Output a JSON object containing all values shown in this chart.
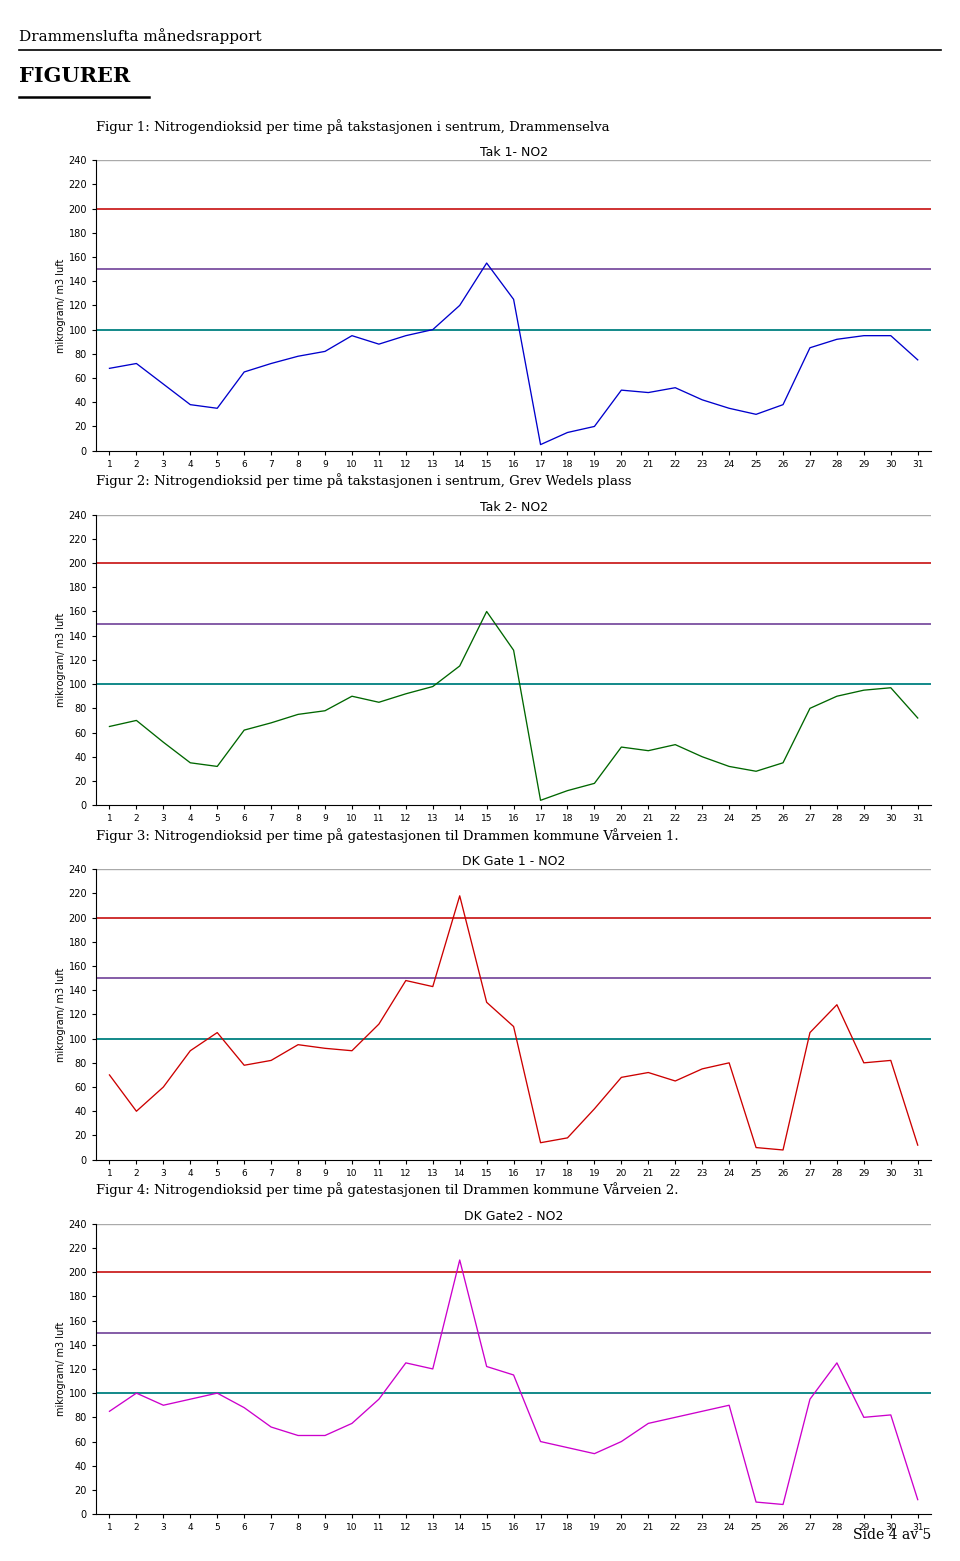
{
  "page_title": "Drammenslufta månedsrapport",
  "section_title": "FIGURER",
  "fig1_caption": "Figur 1: Nitrogendioksid per time på takstasjonen i sentrum, Drammenselva",
  "fig2_caption": "Figur 2: Nitrogendioksid per time på takstasjonen i sentrum, Grev Wedels plass",
  "fig3_caption": "Figur 3: Nitrogendioksid per time på gatestasjonen til Drammen kommune Vårveien 1.",
  "fig4_caption": "Figur 4: Nitrogendioksid per time på gatestasjonen til Drammen kommune Vårveien 2.",
  "fig1_title": "Tak 1- NO2",
  "fig2_title": "Tak 2- NO2",
  "fig3_title": "DK Gate 1 - NO2",
  "fig4_title": "DK Gate2 - NO2",
  "ylabel": "mikrogram/ m3 luft",
  "ylim": [
    0,
    240
  ],
  "yticks": [
    0,
    20,
    40,
    60,
    80,
    100,
    120,
    140,
    160,
    180,
    200,
    220,
    240
  ],
  "xticks": [
    1,
    2,
    3,
    4,
    5,
    6,
    7,
    8,
    9,
    10,
    11,
    12,
    13,
    14,
    15,
    16,
    17,
    18,
    19,
    20,
    21,
    22,
    23,
    24,
    25,
    26,
    27,
    28,
    29,
    30,
    31
  ],
  "hline1": 100,
  "hline2": 150,
  "hline3": 200,
  "hline1_color": "#008080",
  "hline2_color": "#7b4fa0",
  "hline3_color": "#cc2222",
  "hline_gray_color": "#aaaaaa",
  "line1_color": "#0000cc",
  "line2_color": "#006600",
  "line3_color": "#cc0000",
  "line4_color": "#cc00cc",
  "page_footer": "Side 4 av 5",
  "tak1": [
    68,
    72,
    55,
    38,
    35,
    65,
    72,
    78,
    82,
    95,
    88,
    95,
    100,
    120,
    155,
    125,
    5,
    15,
    20,
    50,
    48,
    52,
    42,
    35,
    30,
    38,
    85,
    92,
    95,
    95,
    75
  ],
  "tak2": [
    65,
    70,
    52,
    35,
    32,
    62,
    68,
    75,
    78,
    90,
    85,
    92,
    98,
    115,
    160,
    128,
    4,
    12,
    18,
    48,
    45,
    50,
    40,
    32,
    28,
    35,
    80,
    90,
    95,
    97,
    72
  ],
  "gate1": [
    70,
    40,
    60,
    90,
    105,
    78,
    82,
    95,
    92,
    90,
    112,
    148,
    143,
    218,
    130,
    110,
    14,
    18,
    42,
    68,
    72,
    65,
    75,
    80,
    10,
    8,
    105,
    128,
    80,
    82,
    12
  ],
  "gate2": [
    85,
    100,
    90,
    95,
    100,
    88,
    72,
    65,
    65,
    75,
    95,
    125,
    120,
    210,
    122,
    115,
    60,
    55,
    50,
    60,
    75,
    80,
    85,
    90,
    10,
    8,
    95,
    125,
    80,
    82,
    12
  ]
}
